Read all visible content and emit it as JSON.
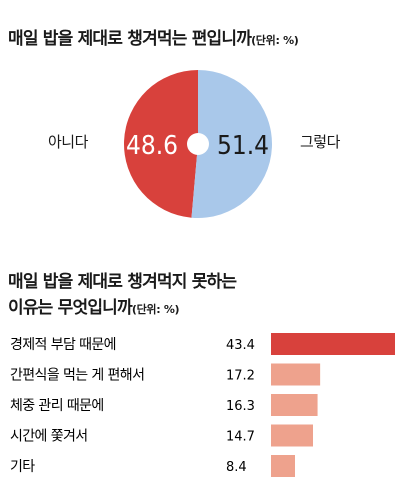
{
  "chart_data": [
    {
      "type": "pie",
      "title": "매일 밥을 제대로 챙겨먹는 편입니까",
      "unit_note": "(단위: %)",
      "slices": [
        {
          "label": "아니다",
          "value": 48.6,
          "color": "#d8413c"
        },
        {
          "label": "그렇다",
          "value": 51.4,
          "color": "#a9c8ea"
        }
      ]
    },
    {
      "type": "bar",
      "title_line1": "매일 밥을 제대로 챙겨먹지 못하는",
      "title_line2": "이유는 무엇입니까",
      "unit_note": "(단위: %)",
      "orientation": "horizontal",
      "categories": [
        "경제적 부담 때문에",
        "간편식을 먹는 게 편해서",
        "체중 관리 때문에",
        "시간에 쫓겨서",
        "기타"
      ],
      "values": [
        43.4,
        17.2,
        16.3,
        14.7,
        8.4
      ],
      "colors": [
        "#d8413c",
        "#eea28d",
        "#eea28d",
        "#eea28d",
        "#eea28d"
      ],
      "xlim": [
        0,
        43.4
      ]
    }
  ]
}
